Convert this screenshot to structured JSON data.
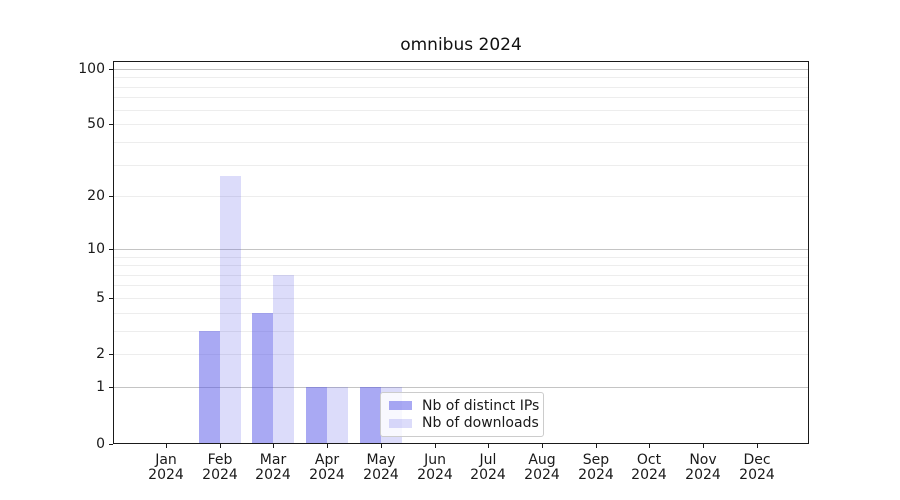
{
  "chart_data": {
    "type": "bar",
    "title": "omnibus 2024",
    "x_month_labels": [
      "Jan",
      "Feb",
      "Mar",
      "Apr",
      "May",
      "Jun",
      "Jul",
      "Aug",
      "Sep",
      "Oct",
      "Nov",
      "Dec"
    ],
    "x_year_label": "2024",
    "series": [
      {
        "name": "Nb of distinct IPs",
        "color": "rgba(80,80,230,0.49)",
        "values": [
          0,
          3,
          4,
          1,
          1,
          0,
          0,
          0,
          0,
          0,
          0,
          0
        ]
      },
      {
        "name": "Nb of downloads",
        "color": "rgba(80,80,230,0.2)",
        "values": [
          0,
          26,
          7,
          1,
          1,
          0,
          0,
          0,
          0,
          0,
          0,
          0
        ]
      }
    ],
    "y_scale": "log1p",
    "ylim": [
      0,
      110
    ],
    "y_ticks": [
      0,
      1,
      2,
      5,
      10,
      20,
      50,
      100
    ],
    "y_major_gridlines": [
      1,
      10,
      100
    ],
    "y_minor_gridlines": [
      2,
      3,
      4,
      5,
      6,
      7,
      8,
      9,
      20,
      30,
      40,
      50,
      60,
      70,
      80,
      90
    ],
    "grid": "on",
    "legend_position": "inside-bottom-center",
    "colors": {
      "bar_distinct_ips": "#a9a9f5",
      "bar_downloads": "#dcdcf9",
      "major_grid": "#c4c4c4",
      "minor_grid": "#ededed",
      "spine": "#1a1a1a"
    }
  }
}
